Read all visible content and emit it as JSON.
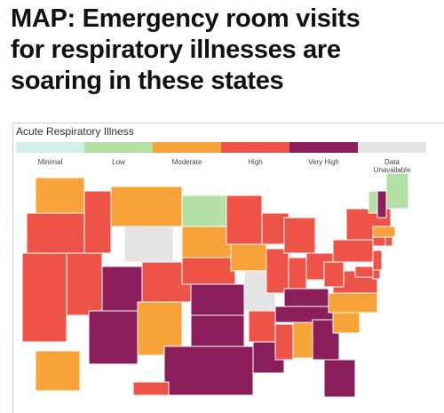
{
  "header": {
    "title": [
      "MAP: Emergency room visits",
      "for respiratory illnesses are",
      "soaring in these states"
    ]
  },
  "map": {
    "legend": {
      "title": "Acute Respiratory Illness",
      "categories": [
        {
          "label": "Minimal",
          "color": "#d3eeea"
        },
        {
          "label": "Low",
          "color": "#b4e0a6"
        },
        {
          "label": "Moderate",
          "color": "#f7a33a"
        },
        {
          "label": "High",
          "color": "#ee5347"
        },
        {
          "label": "Very High",
          "color": "#8a1f5c"
        },
        {
          "label": "Data Unavailable",
          "color": "#e4e4e4"
        }
      ]
    },
    "states": [
      2,
      3,
      3,
      3,
      3,
      2,
      5,
      4,
      4,
      3,
      2,
      1,
      2,
      3,
      4,
      4,
      4,
      3,
      2,
      5,
      3,
      4,
      3,
      3,
      3,
      3,
      3,
      4,
      4,
      3,
      2,
      4,
      4,
      2,
      2,
      3,
      3,
      3,
      3,
      1,
      4,
      1,
      2,
      3,
      3,
      3,
      3,
      3,
      2,
      3
    ]
  }
}
